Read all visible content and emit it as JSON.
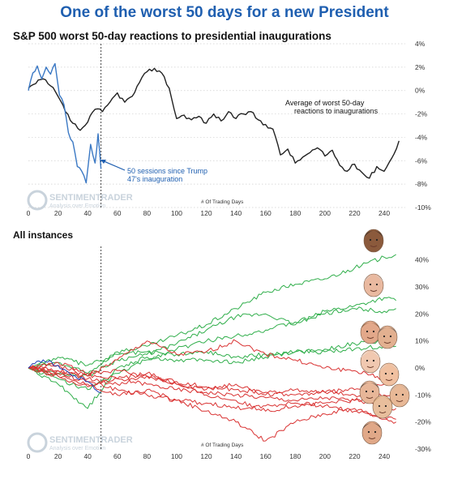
{
  "title": "One of the worst 50 days for a new President",
  "chart_data": [
    {
      "type": "line",
      "title": "S&P 500 worst 50-day reactions to presidential inaugurations",
      "xlabel": "# Of Trading Days",
      "xlim": [
        0,
        252
      ],
      "ylim": [
        -10,
        4
      ],
      "x_ticks": [
        0,
        20,
        40,
        60,
        80,
        100,
        120,
        140,
        160,
        180,
        200,
        220,
        240
      ],
      "y_ticks": [
        4,
        2,
        0,
        -2,
        -4,
        -6,
        -8,
        -10
      ],
      "y_tick_labels": [
        "4%",
        "2%",
        "0%",
        "-2%",
        "-4%",
        "-6%",
        "-8%",
        "-10%"
      ],
      "y_axis_side": "right",
      "vline_x": 49,
      "grid": "horizontal dotted",
      "annotations": [
        {
          "text": "Average of worst 50-day",
          "x": 205,
          "y": -1.2
        },
        {
          "text": "reactions to inaugurations",
          "x": 205,
          "y": -1.8
        },
        {
          "text": "50 sessions since Trump",
          "x": 58,
          "y": -7.0,
          "color": "#1f5fb0"
        },
        {
          "text": "47's inauguration",
          "x": 58,
          "y": -7.6,
          "color": "#1f5fb0"
        }
      ],
      "series": [
        {
          "color": "#222222",
          "x": [
            0,
            5,
            10,
            15,
            20,
            25,
            30,
            35,
            40,
            45,
            50,
            55,
            60,
            65,
            70,
            75,
            80,
            85,
            90,
            95,
            100,
            105,
            110,
            115,
            120,
            125,
            130,
            135,
            140,
            145,
            150,
            155,
            160,
            165,
            170,
            175,
            180,
            185,
            190,
            195,
            200,
            205,
            210,
            215,
            220,
            225,
            230,
            235,
            240,
            245,
            250
          ],
          "values": [
            0.2,
            0.6,
            1.0,
            0.4,
            -0.5,
            -1.8,
            -2.8,
            -3.4,
            -2.7,
            -1.6,
            -1.8,
            -1.0,
            -0.2,
            -1.0,
            -0.5,
            0.7,
            1.6,
            1.9,
            1.5,
            0.2,
            -2.4,
            -2.1,
            -2.5,
            -2.2,
            -2.8,
            -2.0,
            -2.6,
            -1.8,
            -2.4,
            -2.0,
            -1.8,
            -2.5,
            -2.9,
            -3.3,
            -5.5,
            -5.0,
            -6.2,
            -5.7,
            -5.3,
            -4.9,
            -5.6,
            -5.1,
            -6.4,
            -6.9,
            -6.3,
            -7.0,
            -7.5,
            -6.5,
            -6.9,
            -5.8,
            -4.3
          ]
        },
        {
          "color": "#3a78c4",
          "x": [
            0,
            3,
            6,
            9,
            12,
            15,
            18,
            21,
            24,
            27,
            30,
            33,
            36,
            39,
            42,
            45,
            47,
            49
          ],
          "values": [
            0.0,
            1.5,
            2.1,
            1.0,
            2.0,
            1.4,
            2.3,
            -0.4,
            -1.2,
            -3.6,
            -4.4,
            -6.5,
            -6.9,
            -7.9,
            -4.6,
            -6.2,
            -3.7,
            -6.7
          ]
        }
      ]
    },
    {
      "type": "line",
      "title": "All instances",
      "xlabel": "# Of Trading Days",
      "xlim": [
        0,
        252
      ],
      "ylim": [
        -30,
        45
      ],
      "x_ticks": [
        0,
        20,
        40,
        60,
        80,
        100,
        120,
        140,
        160,
        180,
        200,
        220,
        240
      ],
      "y_ticks": [
        40,
        30,
        20,
        10,
        0,
        -10,
        -20,
        -30
      ],
      "y_tick_labels": [
        "40%",
        "30%",
        "20%",
        "10%",
        "0%",
        "-10%",
        "-20%",
        "-30%"
      ],
      "y_axis_side": "right",
      "vline_x": 49,
      "series": [
        {
          "color": "#2fae4a",
          "x": [
            0,
            20,
            40,
            60,
            80,
            100,
            120,
            140,
            160,
            180,
            200,
            220,
            240,
            248
          ],
          "values": [
            0,
            2,
            -2,
            6,
            8,
            12,
            16,
            22,
            28,
            31,
            33,
            37,
            41,
            42
          ]
        },
        {
          "color": "#2fae4a",
          "x": [
            0,
            20,
            40,
            60,
            80,
            100,
            120,
            140,
            160,
            180,
            200,
            220,
            240,
            248
          ],
          "values": [
            0,
            -2,
            -3,
            3,
            5,
            9,
            14,
            19,
            20,
            16,
            21,
            23,
            26,
            25
          ]
        },
        {
          "color": "#2fae4a",
          "x": [
            0,
            20,
            40,
            60,
            80,
            100,
            120,
            140,
            160,
            180,
            200,
            220,
            240,
            248
          ],
          "values": [
            0,
            -4,
            -8,
            -2,
            3,
            7,
            10,
            12,
            14,
            17,
            20,
            22,
            21,
            22
          ]
        },
        {
          "color": "#2fae4a",
          "x": [
            0,
            20,
            40,
            60,
            80,
            100,
            120,
            140,
            160,
            180,
            200,
            220,
            240,
            248
          ],
          "values": [
            0,
            4,
            1,
            5,
            6,
            5,
            6,
            4,
            5,
            6,
            7,
            9,
            10,
            10
          ]
        },
        {
          "color": "#2fae4a",
          "x": [
            0,
            20,
            40,
            60,
            80,
            100,
            120,
            140,
            160,
            180,
            200,
            220,
            240,
            248
          ],
          "values": [
            0,
            -6,
            -15,
            0,
            4,
            3,
            3,
            2,
            4,
            6,
            6,
            7,
            8,
            8
          ]
        },
        {
          "color": "#d93232",
          "x": [
            0,
            20,
            40,
            60,
            80,
            100,
            120,
            140,
            160,
            180,
            200,
            220,
            240,
            248
          ],
          "values": [
            0,
            1,
            -3,
            3,
            10,
            5,
            6,
            10,
            5,
            3,
            0,
            -1,
            -4,
            -3
          ]
        },
        {
          "color": "#d93232",
          "x": [
            0,
            20,
            40,
            60,
            80,
            100,
            120,
            140,
            160,
            180,
            200,
            220,
            240,
            248
          ],
          "values": [
            0,
            -3,
            -7,
            -4,
            -2,
            -6,
            -8,
            -6,
            -10,
            -8,
            -9,
            -10,
            -12,
            -12
          ]
        },
        {
          "color": "#d93232",
          "x": [
            0,
            20,
            40,
            60,
            80,
            100,
            120,
            140,
            160,
            180,
            200,
            220,
            240,
            248
          ],
          "values": [
            0,
            -1,
            -4,
            -6,
            -3,
            -6,
            -10,
            -12,
            -16,
            -14,
            -13,
            -12,
            -14,
            -15
          ]
        },
        {
          "color": "#d93232",
          "x": [
            0,
            20,
            40,
            60,
            80,
            100,
            120,
            140,
            160,
            180,
            200,
            220,
            240,
            248
          ],
          "values": [
            0,
            -3,
            -6,
            -10,
            -8,
            -12,
            -13,
            -15,
            -14,
            -13,
            -14,
            -16,
            -18,
            -19
          ]
        },
        {
          "color": "#d93232",
          "x": [
            0,
            20,
            40,
            60,
            80,
            100,
            120,
            140,
            160,
            180,
            200,
            220,
            240,
            248
          ],
          "values": [
            0,
            -2,
            -5,
            -8,
            -10,
            -12,
            -16,
            -20,
            -27,
            -20,
            -17,
            -15,
            -19,
            -20
          ]
        },
        {
          "color": "#d93232",
          "x": [
            0,
            20,
            40,
            60,
            80,
            100,
            120,
            140,
            160,
            180,
            200,
            220,
            240,
            248
          ],
          "values": [
            0,
            -1,
            -3,
            -4,
            -6,
            -8,
            -9,
            -10,
            -11,
            -12,
            -11,
            -12,
            -10,
            -9
          ]
        },
        {
          "color": "#d93232",
          "x": [
            0,
            20,
            40,
            60,
            80,
            100,
            120,
            140,
            160,
            180,
            200,
            220,
            240,
            248
          ],
          "values": [
            0,
            2,
            -2,
            -1,
            -3,
            -5,
            -7,
            -8,
            -9,
            -10,
            -9,
            -8,
            -6,
            -5
          ]
        },
        {
          "color": "#1f3fb8",
          "x": [
            0,
            10,
            20,
            30,
            40,
            49
          ],
          "values": [
            0,
            3,
            1,
            -3,
            -5,
            -9
          ]
        }
      ]
    }
  ],
  "watermark": {
    "name": "SENTIMENTRADER",
    "tagline": "Analysis over Emotion"
  }
}
